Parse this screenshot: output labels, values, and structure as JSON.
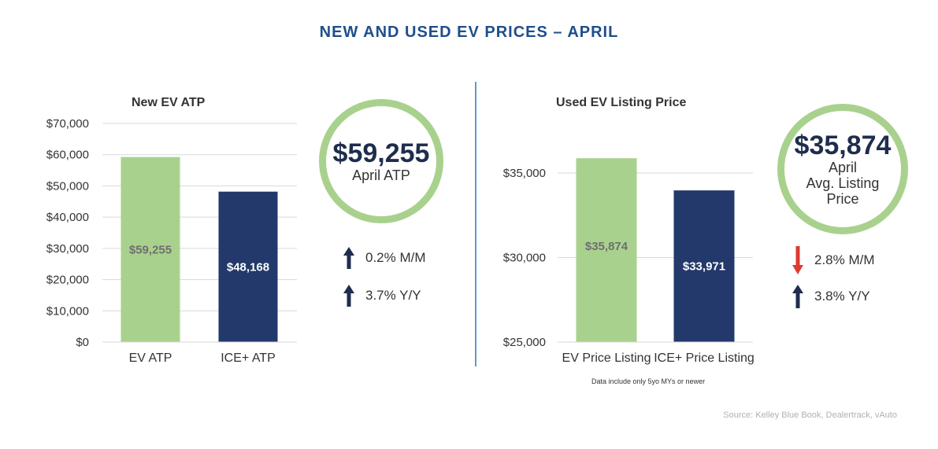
{
  "title": "NEW AND USED EV PRICES – APRIL",
  "colors": {
    "title": "#1f4e8c",
    "green": "#a9d18e",
    "navy": "#23396b",
    "arrow_up": "#1f2d4d",
    "arrow_down": "#e03a2f",
    "divider": "#5b9bd5"
  },
  "chart_data": [
    {
      "type": "bar",
      "title": "New EV ATP",
      "categories": [
        "EV ATP",
        "ICE+ ATP"
      ],
      "values": [
        59255,
        48168
      ],
      "value_labels": [
        "$59,255",
        "$48,168"
      ],
      "ylim": [
        0,
        70000
      ],
      "yticks": [
        0,
        10000,
        20000,
        30000,
        40000,
        50000,
        60000,
        70000
      ],
      "ytick_labels": [
        "$0",
        "$10,000",
        "$20,000",
        "$30,000",
        "$40,000",
        "$50,000",
        "$60,000",
        "$70,000"
      ],
      "colors": [
        "#a9d18e",
        "#23396b"
      ],
      "grid": true
    },
    {
      "type": "bar",
      "title": "Used EV Listing Price",
      "categories": [
        "EV Price Listing",
        "ICE+ Price Listing"
      ],
      "values": [
        35874,
        33971
      ],
      "value_labels": [
        "$35,874",
        "$33,971"
      ],
      "ylim": [
        25000,
        37000
      ],
      "yticks": [
        25000,
        30000,
        35000
      ],
      "ytick_labels": [
        "$25,000",
        "$30,000",
        "$35,000"
      ],
      "colors": [
        "#a9d18e",
        "#23396b"
      ],
      "grid": true
    }
  ],
  "new_ev": {
    "headline_value": "$59,255",
    "headline_label": "April ATP",
    "changes": [
      {
        "direction": "up",
        "text": "0.2% M/M"
      },
      {
        "direction": "up",
        "text": "3.7% Y/Y"
      }
    ]
  },
  "used_ev": {
    "headline_value": "$35,874",
    "headline_label_lines": [
      "April",
      "Avg. Listing",
      "Price"
    ],
    "changes": [
      {
        "direction": "down",
        "text": "2.8% M/M"
      },
      {
        "direction": "up",
        "text": "3.8% Y/Y"
      }
    ],
    "note": "Data include only 5yo MYs or newer"
  },
  "source": "Source: Kelley Blue Book, Dealertrack, vAuto"
}
